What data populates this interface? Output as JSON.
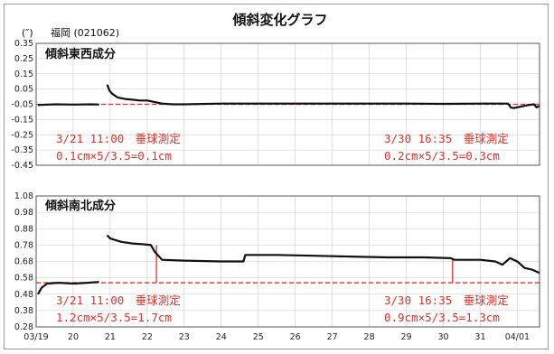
{
  "title": "傾斜変化グラフ",
  "unit_label": "(″)",
  "station": "福岡 (021062)",
  "colors": {
    "trace": "#111111",
    "reference": "#e3302a",
    "grid": "#c8c8c8",
    "annotation": "#e3302a"
  },
  "chart_data": [
    {
      "type": "line",
      "panel_title": "傾斜東西成分",
      "y_ticks": [
        "0.35",
        "0.25",
        "0.15",
        "0.05",
        "-0.05",
        "-0.15",
        "-0.25",
        "-0.35",
        "-0.45"
      ],
      "ylim": [
        -0.45,
        0.35
      ],
      "x_ticks": [
        "03/19",
        "20",
        "21",
        "22",
        "23",
        "24",
        "25",
        "26",
        "27",
        "28",
        "29",
        "30",
        "31",
        "04/01"
      ],
      "xlim": [
        0,
        13.6
      ],
      "reference_line": -0.05,
      "series": [
        {
          "values": [
            [
              0.05,
              -0.055
            ],
            [
              0.5,
              -0.05
            ],
            [
              1.0,
              -0.052
            ],
            [
              1.5,
              -0.05
            ],
            [
              1.7,
              -0.052
            ]
          ]
        },
        {
          "values": [
            [
              1.92,
              0.08
            ],
            [
              1.98,
              0.04
            ],
            [
              2.05,
              0.02
            ],
            [
              2.2,
              -0.005
            ],
            [
              2.4,
              -0.015
            ],
            [
              2.6,
              -0.02
            ],
            [
              2.8,
              -0.025
            ],
            [
              3.0,
              -0.025
            ],
            [
              3.2,
              -0.035
            ],
            [
              3.4,
              -0.045
            ],
            [
              3.7,
              -0.05
            ],
            [
              4.0,
              -0.05
            ],
            [
              5.0,
              -0.045
            ],
            [
              6.0,
              -0.045
            ],
            [
              7.0,
              -0.045
            ],
            [
              8.0,
              -0.045
            ],
            [
              9.0,
              -0.045
            ],
            [
              10.0,
              -0.045
            ],
            [
              11.0,
              -0.047
            ],
            [
              12.0,
              -0.045
            ],
            [
              12.75,
              -0.045
            ],
            [
              12.82,
              -0.07
            ],
            [
              12.9,
              -0.075
            ],
            [
              13.1,
              -0.065
            ],
            [
              13.3,
              -0.055
            ],
            [
              13.45,
              -0.05
            ],
            [
              13.52,
              -0.07
            ],
            [
              13.6,
              -0.06
            ]
          ]
        }
      ],
      "annotations": [
        {
          "line1": "3/21 11:00　垂球測定",
          "line2": "0.1cm×5/3.5=0.1cm"
        },
        {
          "line1": "3/30 16:35　垂球測定",
          "line2": "0.2cm×5/3.5=0.3cm"
        }
      ]
    },
    {
      "type": "line",
      "panel_title": "傾斜南北成分",
      "y_ticks": [
        "1.08",
        "0.98",
        "0.88",
        "0.78",
        "0.68",
        "0.58",
        "0.48",
        "0.38",
        "0.28"
      ],
      "ylim": [
        0.28,
        1.08
      ],
      "x_ticks": [
        "03/19",
        "20",
        "21",
        "22",
        "23",
        "24",
        "25",
        "26",
        "27",
        "28",
        "29",
        "30",
        "31",
        "04/01"
      ],
      "xlim": [
        0,
        13.6
      ],
      "reference_line": 0.55,
      "series": [
        {
          "values": [
            [
              0.05,
              0.48
            ],
            [
              0.15,
              0.52
            ],
            [
              0.3,
              0.545
            ],
            [
              0.6,
              0.55
            ],
            [
              1.0,
              0.545
            ],
            [
              1.4,
              0.55
            ],
            [
              1.7,
              0.555
            ]
          ]
        },
        {
          "values": [
            [
              1.92,
              0.84
            ],
            [
              2.0,
              0.82
            ],
            [
              2.3,
              0.8
            ],
            [
              2.6,
              0.79
            ],
            [
              2.9,
              0.785
            ],
            [
              3.1,
              0.78
            ],
            [
              3.2,
              0.74
            ],
            [
              3.4,
              0.69
            ],
            [
              4.0,
              0.685
            ],
            [
              5.0,
              0.68
            ],
            [
              5.6,
              0.68
            ],
            [
              5.65,
              0.72
            ],
            [
              6.5,
              0.72
            ],
            [
              7.5,
              0.715
            ],
            [
              8.5,
              0.71
            ],
            [
              9.5,
              0.705
            ],
            [
              10.5,
              0.705
            ],
            [
              11.2,
              0.7
            ],
            [
              11.3,
              0.69
            ],
            [
              12.0,
              0.69
            ],
            [
              12.4,
              0.68
            ],
            [
              12.6,
              0.66
            ],
            [
              12.8,
              0.7
            ],
            [
              13.0,
              0.68
            ],
            [
              13.2,
              0.64
            ],
            [
              13.4,
              0.63
            ],
            [
              13.6,
              0.61
            ]
          ]
        }
      ],
      "annotations": [
        {
          "line1": "3/21 11:00　垂球測定",
          "line2": "1.2cm×5/3.5=1.7cm"
        },
        {
          "line1": "3/30 16:35　垂球測定",
          "line2": "0.9cm×5/3.5=1.3cm"
        }
      ]
    }
  ]
}
